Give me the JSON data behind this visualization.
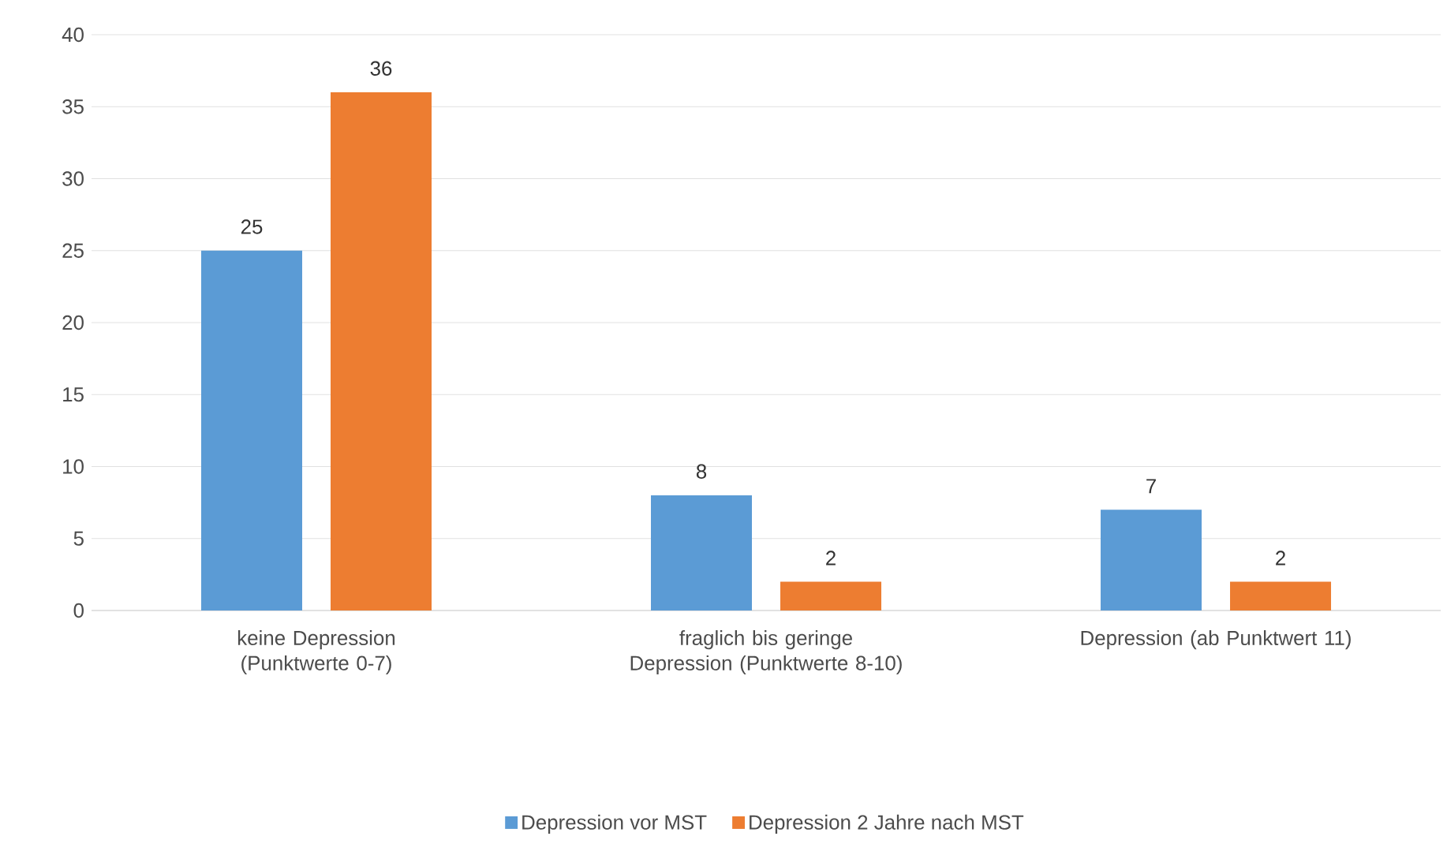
{
  "chart_data": {
    "type": "bar",
    "categories": [
      "keine Depression (Punktwerte 0-7)",
      "fraglich bis geringe Depression (Punktwerte 8-10)",
      "Depression (ab Punktwert 11)"
    ],
    "series": [
      {
        "name": "Depression vor MST",
        "color": "#5b9bd5",
        "values": [
          25,
          8,
          7
        ]
      },
      {
        "name": "Depression 2 Jahre nach MST",
        "color": "#ed7d31",
        "values": [
          36,
          2,
          2
        ]
      }
    ],
    "ylim": [
      0,
      40
    ],
    "yticks": [
      0,
      5,
      10,
      15,
      20,
      25,
      30,
      35,
      40
    ],
    "grid": "y",
    "legend": "bottom",
    "data_labels": true
  }
}
